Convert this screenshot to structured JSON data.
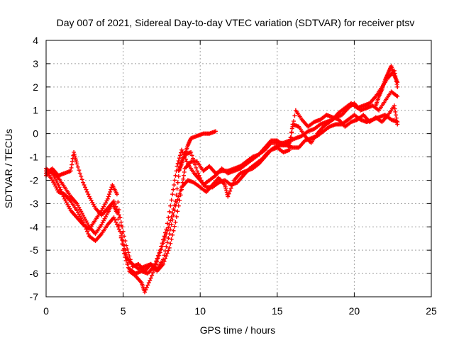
{
  "chart_data": {
    "type": "scatter",
    "title": "Day 007 of 2021, Sidereal Day-to-day VTEC variation (SDTVAR) for receiver ptsv",
    "xlabel": "GPS time / hours",
    "ylabel": "SDTVAR / TECUs",
    "xlim": [
      0,
      25
    ],
    "ylim": [
      -7,
      4
    ],
    "xticks": [
      0,
      5,
      10,
      15,
      20,
      25
    ],
    "yticks": [
      -7,
      -6,
      -5,
      -4,
      -3,
      -2,
      -1,
      0,
      1,
      2,
      3,
      4
    ],
    "grid": true,
    "marker": "plus",
    "series": [
      {
        "name": "ptsv",
        "color": "#ff0000",
        "tracks": [
          [
            [
              0.0,
              -1.5
            ],
            [
              0.4,
              -1.7
            ],
            [
              0.8,
              -2.2
            ],
            [
              1.2,
              -2.8
            ],
            [
              1.6,
              -3.3
            ],
            [
              2.0,
              -3.6
            ],
            [
              2.4,
              -3.9
            ],
            [
              2.8,
              -4.1
            ],
            [
              3.2,
              -3.7
            ],
            [
              3.6,
              -3.3
            ],
            [
              4.0,
              -2.8
            ],
            [
              4.3,
              -2.2
            ],
            [
              4.6,
              -2.6
            ],
            [
              5.0,
              -4.6
            ],
            [
              5.4,
              -5.8
            ],
            [
              5.8,
              -6.0
            ],
            [
              6.2,
              -5.9
            ],
            [
              6.6,
              -6.0
            ],
            [
              7.0,
              -5.7
            ],
            [
              7.4,
              -5.0
            ],
            [
              7.8,
              -4.1
            ],
            [
              8.2,
              -2.6
            ],
            [
              8.5,
              -1.4
            ],
            [
              8.8,
              -0.7
            ],
            [
              9.2,
              -1.3
            ],
            [
              9.6,
              -1.7
            ],
            [
              10.0,
              -2.0
            ],
            [
              10.4,
              -2.3
            ],
            [
              10.8,
              -2.3
            ],
            [
              11.2,
              -2.1
            ],
            [
              11.6,
              -2.0
            ],
            [
              12.0,
              -2.2
            ],
            [
              12.4,
              -2.1
            ],
            [
              12.8,
              -1.8
            ],
            [
              13.2,
              -1.5
            ],
            [
              13.6,
              -1.3
            ],
            [
              14.0,
              -1.1
            ],
            [
              14.4,
              -0.8
            ],
            [
              14.8,
              -0.6
            ],
            [
              15.2,
              -0.5
            ],
            [
              15.6,
              -0.5
            ],
            [
              16.0,
              -0.6
            ],
            [
              16.4,
              -0.6
            ],
            [
              16.8,
              -0.3
            ],
            [
              17.2,
              -0.2
            ],
            [
              17.6,
              -0.1
            ],
            [
              18.0,
              0.1
            ],
            [
              18.4,
              0.3
            ],
            [
              18.8,
              0.4
            ],
            [
              19.2,
              0.4
            ],
            [
              19.6,
              0.6
            ],
            [
              20.0,
              0.8
            ],
            [
              20.4,
              0.6
            ],
            [
              20.8,
              0.5
            ],
            [
              21.2,
              0.6
            ],
            [
              21.6,
              0.7
            ],
            [
              22.0,
              0.8
            ],
            [
              22.4,
              0.6
            ],
            [
              22.8,
              0.5
            ]
          ],
          [
            [
              0.0,
              -1.8
            ],
            [
              0.4,
              -1.6
            ],
            [
              0.8,
              -1.9
            ],
            [
              1.2,
              -2.3
            ],
            [
              1.6,
              -2.7
            ],
            [
              2.0,
              -3.0
            ],
            [
              2.4,
              -3.5
            ],
            [
              2.8,
              -4.0
            ],
            [
              3.2,
              -4.3
            ],
            [
              3.6,
              -3.9
            ],
            [
              4.0,
              -3.4
            ],
            [
              4.3,
              -3.0
            ],
            [
              4.6,
              -3.4
            ],
            [
              5.0,
              -5.0
            ],
            [
              5.4,
              -5.9
            ],
            [
              5.8,
              -6.1
            ],
            [
              6.2,
              -6.4
            ],
            [
              6.4,
              -6.8
            ],
            [
              6.8,
              -6.2
            ],
            [
              7.2,
              -5.5
            ],
            [
              7.6,
              -4.7
            ],
            [
              8.0,
              -3.9
            ],
            [
              8.4,
              -2.9
            ],
            [
              8.7,
              -1.3
            ],
            [
              9.0,
              -0.9
            ],
            [
              9.4,
              -0.8
            ],
            [
              9.8,
              -1.6
            ],
            [
              10.2,
              -2.2
            ],
            [
              10.6,
              -2.0
            ],
            [
              11.0,
              -1.8
            ],
            [
              11.4,
              -1.5
            ],
            [
              11.8,
              -1.7
            ],
            [
              12.2,
              -1.6
            ],
            [
              12.6,
              -1.5
            ],
            [
              13.0,
              -1.3
            ],
            [
              13.4,
              -1.1
            ],
            [
              13.8,
              -0.9
            ],
            [
              14.2,
              -0.7
            ],
            [
              14.6,
              -0.4
            ],
            [
              15.0,
              -0.4
            ],
            [
              15.4,
              -0.4
            ],
            [
              15.8,
              -0.3
            ],
            [
              16.2,
              -0.2
            ],
            [
              16.6,
              -0.1
            ],
            [
              17.0,
              0.1
            ],
            [
              17.4,
              0.2
            ],
            [
              17.8,
              0.4
            ],
            [
              18.2,
              0.5
            ],
            [
              18.6,
              0.6
            ],
            [
              19.0,
              0.9
            ],
            [
              19.4,
              1.1
            ],
            [
              19.8,
              1.3
            ],
            [
              20.2,
              1.1
            ],
            [
              20.6,
              1.2
            ],
            [
              21.0,
              1.3
            ],
            [
              21.4,
              1.6
            ],
            [
              21.8,
              2.0
            ],
            [
              22.2,
              2.4
            ],
            [
              22.6,
              2.7
            ],
            [
              22.8,
              2.0
            ]
          ],
          [
            [
              0.0,
              -1.6
            ],
            [
              0.4,
              -2.0
            ],
            [
              0.8,
              -2.5
            ],
            [
              1.2,
              -2.6
            ],
            [
              1.6,
              -2.9
            ],
            [
              2.0,
              -3.3
            ],
            [
              2.4,
              -3.8
            ],
            [
              2.8,
              -4.4
            ],
            [
              3.2,
              -4.6
            ],
            [
              3.6,
              -4.3
            ],
            [
              4.0,
              -3.9
            ],
            [
              4.4,
              -3.6
            ],
            [
              4.8,
              -4.2
            ],
            [
              5.2,
              -5.3
            ],
            [
              5.6,
              -5.6
            ],
            [
              6.0,
              -5.8
            ],
            [
              6.4,
              -5.7
            ],
            [
              6.8,
              -5.6
            ],
            [
              7.2,
              -5.8
            ],
            [
              7.6,
              -5.4
            ],
            [
              8.0,
              -4.3
            ],
            [
              8.4,
              -3.1
            ],
            [
              8.8,
              -2.3
            ],
            [
              9.2,
              -2.0
            ],
            [
              9.6,
              -2.1
            ],
            [
              10.0,
              -2.3
            ],
            [
              10.4,
              -2.5
            ],
            [
              10.8,
              -2.2
            ],
            [
              11.2,
              -1.9
            ],
            [
              11.6,
              -2.2
            ],
            [
              11.8,
              -2.7
            ],
            [
              12.2,
              -2.0
            ],
            [
              12.6,
              -1.7
            ],
            [
              13.0,
              -1.6
            ],
            [
              13.4,
              -1.5
            ],
            [
              13.8,
              -1.3
            ],
            [
              14.2,
              -1.0
            ],
            [
              14.6,
              -0.7
            ],
            [
              15.0,
              -0.6
            ],
            [
              15.4,
              -0.8
            ],
            [
              15.8,
              -0.7
            ],
            [
              16.0,
              0.4
            ],
            [
              16.4,
              0.3
            ],
            [
              16.8,
              -0.1
            ],
            [
              17.2,
              -0.4
            ],
            [
              17.6,
              0.0
            ],
            [
              18.0,
              0.3
            ],
            [
              18.4,
              0.5
            ],
            [
              18.8,
              0.7
            ],
            [
              19.2,
              0.8
            ],
            [
              19.6,
              1.1
            ],
            [
              20.0,
              1.3
            ],
            [
              20.4,
              1.0
            ],
            [
              20.8,
              1.1
            ],
            [
              21.2,
              1.2
            ],
            [
              21.6,
              1.0
            ],
            [
              22.0,
              1.4
            ],
            [
              22.4,
              1.8
            ],
            [
              22.8,
              1.6
            ]
          ],
          [
            [
              0.0,
              -1.7
            ],
            [
              0.4,
              -1.5
            ],
            [
              0.8,
              -1.8
            ],
            [
              1.2,
              -1.7
            ],
            [
              1.6,
              -1.6
            ],
            [
              1.8,
              -0.8
            ],
            [
              2.0,
              -1.3
            ],
            [
              2.4,
              -2.1
            ],
            [
              2.8,
              -2.7
            ],
            [
              3.2,
              -3.2
            ],
            [
              3.6,
              -3.5
            ],
            [
              4.0,
              -3.2
            ],
            [
              4.4,
              -2.9
            ],
            [
              4.8,
              -3.6
            ],
            [
              5.2,
              -4.8
            ],
            [
              5.6,
              -5.7
            ],
            [
              6.0,
              -5.6
            ],
            [
              6.4,
              -5.9
            ],
            [
              6.8,
              -5.6
            ],
            [
              7.2,
              -5.9
            ],
            [
              7.6,
              -5.6
            ],
            [
              8.0,
              -4.9
            ],
            [
              8.4,
              -3.8
            ],
            [
              8.8,
              -2.4
            ],
            [
              9.0,
              -1.5
            ],
            [
              9.4,
              -1.2
            ],
            [
              9.8,
              -1.2
            ],
            [
              10.2,
              -1.6
            ],
            [
              10.6,
              -1.4
            ],
            [
              11.0,
              -1.7
            ],
            [
              11.4,
              -1.6
            ],
            [
              11.8,
              -1.6
            ],
            [
              12.2,
              -1.5
            ],
            [
              12.6,
              -1.4
            ],
            [
              13.0,
              -1.2
            ],
            [
              13.4,
              -1.0
            ],
            [
              13.8,
              -0.9
            ],
            [
              14.2,
              -0.6
            ],
            [
              14.6,
              -0.3
            ],
            [
              15.0,
              -0.3
            ],
            [
              15.4,
              -0.5
            ],
            [
              15.8,
              -0.4
            ],
            [
              16.2,
              1.0
            ],
            [
              16.6,
              0.6
            ],
            [
              17.0,
              0.3
            ],
            [
              17.4,
              0.5
            ],
            [
              17.8,
              0.6
            ],
            [
              18.2,
              0.8
            ],
            [
              18.6,
              0.7
            ],
            [
              19.0,
              0.6
            ],
            [
              19.4,
              0.3
            ],
            [
              19.8,
              0.5
            ],
            [
              20.2,
              0.6
            ],
            [
              20.6,
              0.8
            ],
            [
              21.0,
              0.5
            ],
            [
              21.4,
              0.7
            ],
            [
              21.8,
              0.5
            ],
            [
              22.2,
              0.8
            ],
            [
              22.6,
              1.2
            ],
            [
              22.8,
              0.4
            ]
          ],
          [
            [
              8.6,
              -1.6
            ],
            [
              8.8,
              -1.3
            ],
            [
              9.0,
              -0.9
            ],
            [
              9.2,
              -0.5
            ],
            [
              9.4,
              -0.2
            ],
            [
              9.8,
              -0.1
            ],
            [
              10.2,
              0.0
            ],
            [
              10.6,
              0.0
            ],
            [
              11.0,
              0.1
            ]
          ],
          [
            [
              21.4,
              1.2
            ],
            [
              21.6,
              1.6
            ],
            [
              21.8,
              1.9
            ],
            [
              22.0,
              2.3
            ],
            [
              22.2,
              2.6
            ],
            [
              22.4,
              2.9
            ],
            [
              22.6,
              2.5
            ],
            [
              22.8,
              2.2
            ]
          ]
        ]
      }
    ]
  }
}
